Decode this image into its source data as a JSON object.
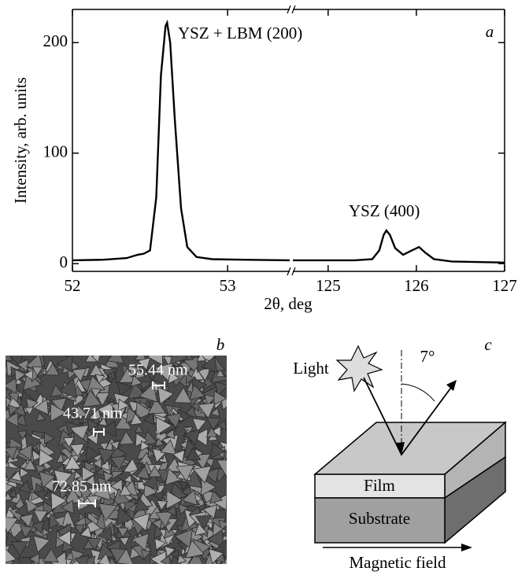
{
  "chart_data": [
    {
      "type": "line",
      "y_label": "Intensity, arb. units",
      "x_label": "2θ, deg",
      "panel_label": "a",
      "annotations": [
        "YSZ + LBM (200)"
      ],
      "ylim": [
        -7,
        230
      ],
      "yticks": [
        0,
        100,
        200
      ],
      "xlim": [
        52,
        53.4
      ],
      "xticks": [
        52,
        53
      ],
      "color": "#000000",
      "x": [
        52,
        52.2,
        52.35,
        52.42,
        52.46,
        52.5,
        52.54,
        52.57,
        52.6,
        52.61,
        52.63,
        52.66,
        52.7,
        52.74,
        52.8,
        52.9,
        53.1,
        53.4
      ],
      "values": [
        3,
        3.5,
        5,
        8,
        9,
        12,
        60,
        170,
        215,
        218,
        200,
        130,
        50,
        15,
        6,
        4,
        3.5,
        3
      ]
    },
    {
      "type": "line",
      "annotations": [
        "YSZ (400)"
      ],
      "ylim": [
        -7,
        230
      ],
      "xlim": [
        124.6,
        127
      ],
      "xticks": [
        125,
        126,
        127
      ],
      "color": "#000000",
      "x": [
        124.6,
        125,
        125.3,
        125.5,
        125.58,
        125.63,
        125.66,
        125.7,
        125.76,
        125.85,
        125.95,
        126.03,
        126.1,
        126.2,
        126.4,
        127
      ],
      "values": [
        3,
        3,
        3,
        4,
        12,
        26,
        30,
        26,
        14,
        8,
        12,
        15,
        10,
        4,
        2,
        1
      ]
    }
  ],
  "sem_image": {
    "panel_label": "b",
    "measurements": [
      "55.44 nm",
      "43.71 nm",
      "72.85 nm"
    ]
  },
  "diagram": {
    "panel_label": "c",
    "light": "Light",
    "angle": "7°",
    "layers": [
      "Film",
      "Substrate"
    ],
    "field": "Magnetic field"
  }
}
